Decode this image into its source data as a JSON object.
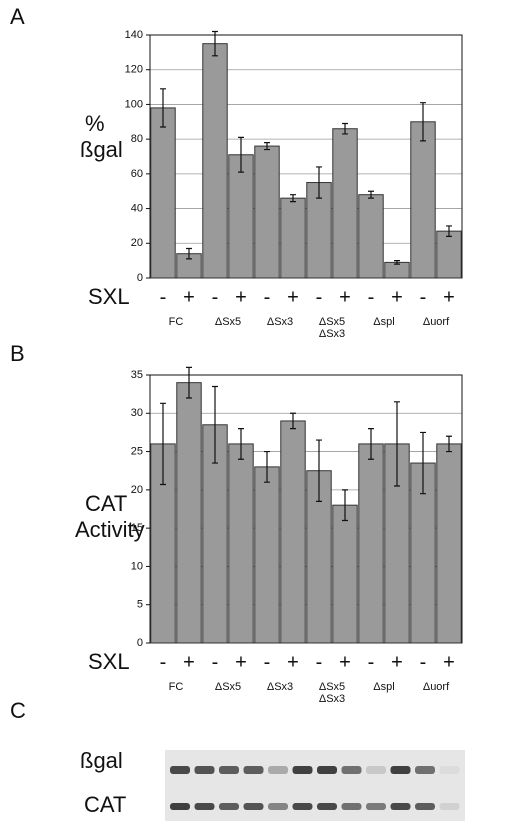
{
  "chart_data": [
    {
      "type": "bar",
      "panel": "A",
      "ylabel": [
        "%",
        "ßgal"
      ],
      "row_label": "SXL",
      "categories": [
        "-",
        "+",
        "-",
        "+",
        "-",
        "+",
        "-",
        "+",
        "-",
        "+",
        "-",
        "+"
      ],
      "groups": [
        [
          "FC"
        ],
        [
          "ΔSx5"
        ],
        [
          "ΔSx3"
        ],
        [
          "ΔSx5",
          "ΔSx3"
        ],
        [
          "Δspl"
        ],
        [
          "Δuorf"
        ]
      ],
      "values": [
        98,
        14,
        135,
        71,
        76,
        46,
        55,
        86,
        48,
        9,
        90,
        27
      ],
      "errors": [
        11,
        3,
        7,
        10,
        2,
        2,
        9,
        3,
        2,
        1,
        11,
        3
      ],
      "color": "#9a9a9a",
      "ylim": [
        0,
        140
      ],
      "yticks": [
        0,
        20,
        40,
        60,
        80,
        100,
        120,
        140
      ],
      "grid": true
    },
    {
      "type": "bar",
      "panel": "B",
      "ylabel": [
        "CAT",
        "Activity"
      ],
      "row_label": "SXL",
      "categories": [
        "-",
        "+",
        "-",
        "+",
        "-",
        "+",
        "-",
        "+",
        "-",
        "+",
        "-",
        "+"
      ],
      "groups": [
        [
          "FC"
        ],
        [
          "ΔSx5"
        ],
        [
          "ΔSx3"
        ],
        [
          "ΔSx5",
          "ΔSx3"
        ],
        [
          "Δspl"
        ],
        [
          "Δuorf"
        ]
      ],
      "values": [
        26,
        34,
        28.5,
        26,
        23,
        29,
        22.5,
        18,
        26,
        26,
        23.5,
        26
      ],
      "errors": [
        5.3,
        2,
        5,
        2,
        2,
        1,
        4,
        2,
        2,
        5.5,
        4,
        1
      ],
      "color": "#9a9a9a",
      "ylim": [
        0,
        35
      ],
      "yticks": [
        0,
        5,
        10,
        15,
        20,
        25,
        30,
        35
      ],
      "grid": true
    }
  ],
  "gel": {
    "panel": "C",
    "rows": [
      "ßgal",
      "CAT"
    ]
  }
}
